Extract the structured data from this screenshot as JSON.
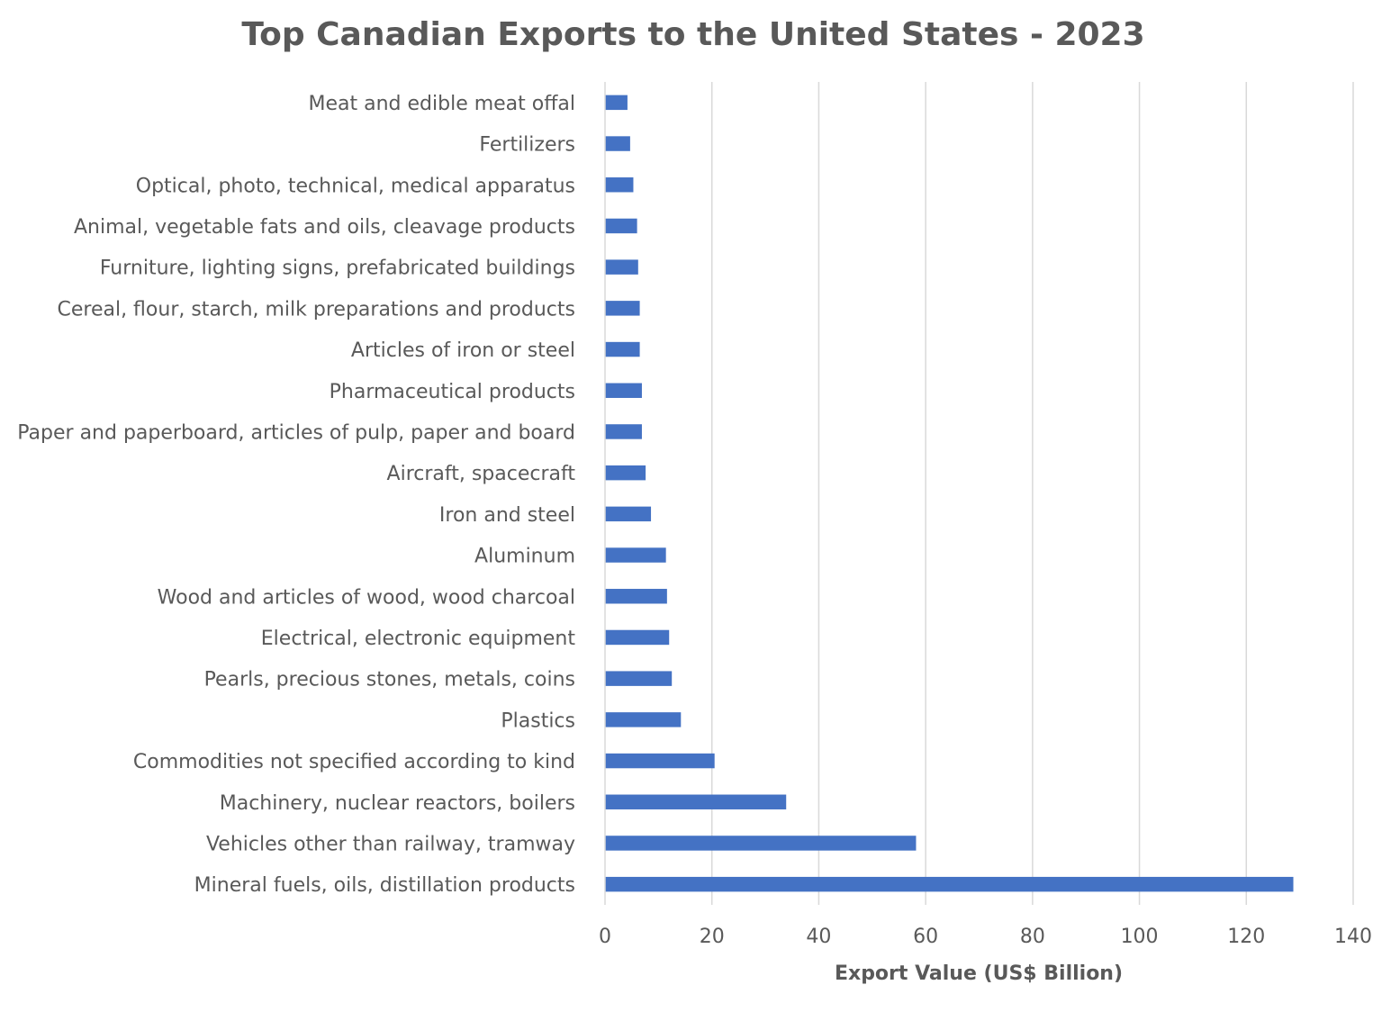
{
  "chart_data": {
    "type": "bar",
    "orientation": "horizontal",
    "title": "Top Canadian Exports to the United States - 2023",
    "xlabel": "Export Value (US$ Billion)",
    "ylabel": "",
    "xlim": [
      0,
      140
    ],
    "xticks": [
      "0",
      "20",
      "40",
      "60",
      "80",
      "100",
      "120",
      "140"
    ],
    "grid": "vertical",
    "legend": "none",
    "categories": [
      "Meat and edible meat offal",
      "Fertilizers",
      "Optical, photo, technical, medical apparatus",
      "Animal, vegetable fats and oils, cleavage products",
      "Furniture, lighting signs, prefabricated buildings",
      "Cereal, flour, starch, milk preparations and products",
      "Articles of iron or steel",
      "Pharmaceutical products",
      "Paper and paperboard, articles of pulp, paper and board",
      "Aircraft, spacecraft",
      "Iron and steel",
      "Aluminum",
      "Wood and articles of wood, wood charcoal",
      "Electrical, electronic equipment",
      "Pearls, precious stones, metals, coins",
      "Plastics",
      "Commodities not specified according to kind",
      "Machinery, nuclear reactors, boilers",
      "Vehicles other than railway, tramway",
      "Mineral fuels, oils, distillation products"
    ],
    "values": [
      4.2,
      4.7,
      5.3,
      6.0,
      6.2,
      6.5,
      6.5,
      6.9,
      6.9,
      7.6,
      8.6,
      11.4,
      11.6,
      12.0,
      12.5,
      14.2,
      20.5,
      33.9,
      58.2,
      128.8
    ],
    "colors": {
      "bar": "#4472C4",
      "grid": "#D9D9D9",
      "text": "#595959",
      "title": "#595959"
    }
  }
}
